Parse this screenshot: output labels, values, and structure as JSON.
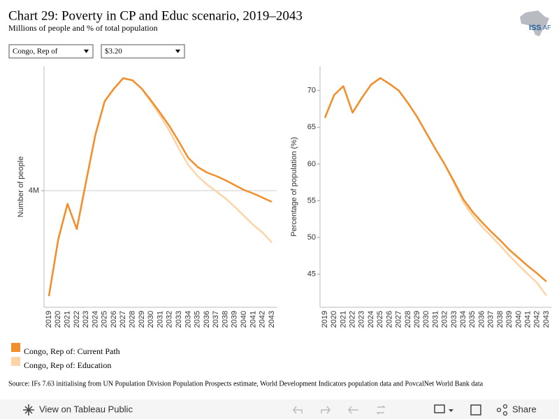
{
  "header": {
    "title": "Chart 29: Poverty in CP and Educ scenario, 2019–2043",
    "subtitle": "Millions of people and % of total population",
    "logo": {
      "main": "ISS",
      "sub": "AF"
    }
  },
  "filters": [
    "Congo, Rep of",
    "$3.20"
  ],
  "chart_data": [
    {
      "type": "line",
      "y_label": "Number of people",
      "categories": [
        "2019",
        "2020",
        "2021",
        "2022",
        "2023",
        "2024",
        "2025",
        "2026",
        "2027",
        "2028",
        "2029",
        "2030",
        "2031",
        "2032",
        "2033",
        "2034",
        "2035",
        "2036",
        "2037",
        "2038",
        "2039",
        "2040",
        "2041",
        "2042",
        "2043"
      ],
      "ylim": [
        2330000,
        5780000
      ],
      "yticks": [
        {
          "value": 4000000,
          "label": "4M"
        }
      ],
      "grid": true,
      "series": [
        {
          "name": "Congo, Rep of: Current Path",
          "color": "#f28e2b",
          "values": [
            2490000,
            3300000,
            3810000,
            3450000,
            4130000,
            4800000,
            5280000,
            5460000,
            5610000,
            5580000,
            5460000,
            5290000,
            5110000,
            4920000,
            4700000,
            4470000,
            4340000,
            4260000,
            4210000,
            4150000,
            4080000,
            4010000,
            3960000,
            3900000,
            3840000
          ]
        },
        {
          "name": "Congo, Rep of: Education",
          "color": "#fdd4a6",
          "values": [
            2490000,
            3300000,
            3810000,
            3450000,
            4130000,
            4800000,
            5280000,
            5460000,
            5610000,
            5580000,
            5460000,
            5270000,
            5070000,
            4850000,
            4600000,
            4370000,
            4210000,
            4090000,
            3990000,
            3890000,
            3770000,
            3640000,
            3510000,
            3400000,
            3260000
          ]
        }
      ]
    },
    {
      "type": "line",
      "y_label": "Percentage of population (%)",
      "categories": [
        "2019",
        "2020",
        "2021",
        "2022",
        "2023",
        "2024",
        "2025",
        "2026",
        "2027",
        "2028",
        "2029",
        "2030",
        "2031",
        "2032",
        "2033",
        "2034",
        "2035",
        "2036",
        "2037",
        "2038",
        "2039",
        "2040",
        "2041",
        "2042",
        "2043"
      ],
      "ylim": [
        40.5,
        73.3
      ],
      "yticks": [
        45,
        50,
        55,
        60,
        65,
        70
      ],
      "grid": false,
      "series": [
        {
          "color": "#f28e2b",
          "values": [
            66.3,
            69.4,
            70.6,
            67.0,
            69.0,
            70.8,
            71.7,
            70.9,
            70.0,
            68.3,
            66.4,
            64.2,
            62.0,
            59.9,
            57.6,
            55.2,
            53.5,
            52.1,
            50.8,
            49.6,
            48.3,
            47.2,
            46.1,
            45.1,
            44.0
          ]
        },
        {
          "color": "#fdd4a6",
          "values": [
            66.3,
            69.4,
            70.6,
            67.0,
            69.0,
            70.8,
            71.7,
            70.9,
            70.0,
            68.3,
            66.4,
            64.2,
            62.0,
            59.9,
            57.4,
            54.8,
            53.0,
            51.5,
            50.2,
            48.9,
            47.5,
            46.2,
            45.0,
            43.8,
            42.1
          ]
        }
      ]
    }
  ],
  "source": "Source: IFs 7.63 initialising from UN Population Division Population Prospects estimate, World Development Indicators population data and PovcalNet World Bank data",
  "footer": {
    "view": "View on Tableau Public",
    "share": "Share"
  }
}
